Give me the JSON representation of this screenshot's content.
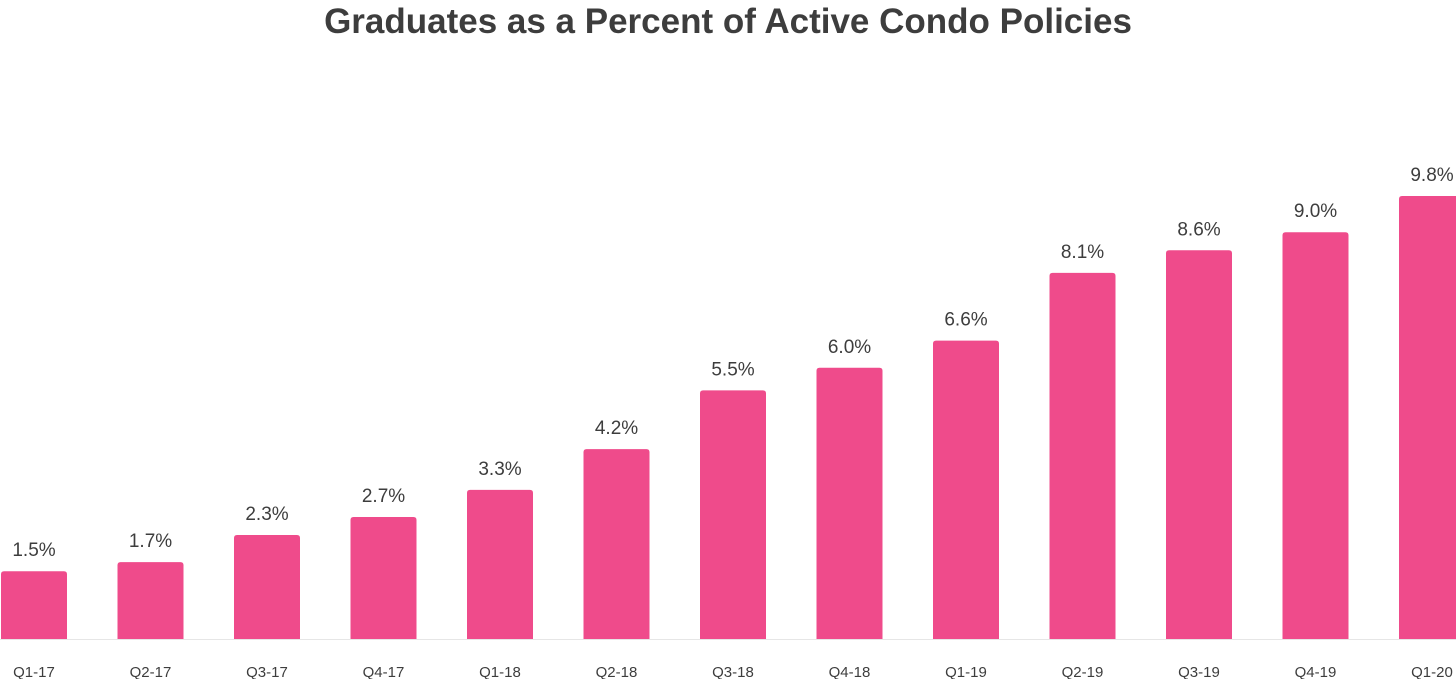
{
  "chart_data": {
    "type": "bar",
    "title": "Graduates as a Percent of Active Condo Policies",
    "xlabel": "",
    "ylabel": "",
    "categories": [
      "Q1-17",
      "Q2-17",
      "Q3-17",
      "Q4-17",
      "Q1-18",
      "Q2-18",
      "Q3-18",
      "Q4-18",
      "Q1-19",
      "Q2-19",
      "Q3-19",
      "Q4-19",
      "Q1-20"
    ],
    "values": [
      1.5,
      1.7,
      2.3,
      2.7,
      3.3,
      4.2,
      5.5,
      6.0,
      6.6,
      8.1,
      8.6,
      9.0,
      9.8
    ],
    "value_labels": [
      "1.5%",
      "1.7%",
      "2.3%",
      "2.7%",
      "3.3%",
      "4.2%",
      "5.5%",
      "6.0%",
      "6.6%",
      "8.1%",
      "8.6%",
      "9.0%",
      "9.8%"
    ],
    "ylim": [
      0,
      10
    ],
    "grid": false,
    "legend": "none",
    "bar_color": "#ef4b8b",
    "text_color": "#3d3d3d",
    "baseline_color": "#e6e6e6"
  }
}
